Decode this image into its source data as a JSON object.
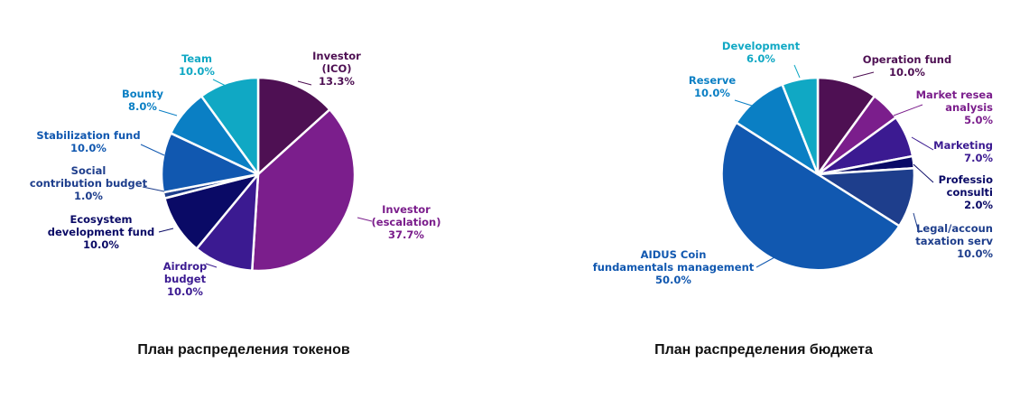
{
  "chart_data": [
    {
      "type": "pie",
      "title": "План распределения токенов",
      "slices": [
        {
          "label": [
            "Investor",
            "(ICO)"
          ],
          "value": 13.3,
          "display": "13.3%",
          "color": "#4e1053"
        },
        {
          "label": [
            "Investor",
            "(escalation)"
          ],
          "value": 37.7,
          "display": "37.7%",
          "color": "#7b1e8c"
        },
        {
          "label": [
            "Airdrop",
            "budget"
          ],
          "value": 10.0,
          "display": "10.0%",
          "color": "#3b1a91"
        },
        {
          "label": [
            "Ecosystem",
            "development fund"
          ],
          "value": 10.0,
          "display": "10.0%",
          "color": "#0a0a66"
        },
        {
          "label": [
            "Social",
            "contribution budget"
          ],
          "value": 1.0,
          "display": "1.0%",
          "color": "#1e3e8c"
        },
        {
          "label": [
            "Stabilization fund"
          ],
          "value": 10.0,
          "display": "10.0%",
          "color": "#1158b0"
        },
        {
          "label": [
            "Bounty"
          ],
          "value": 8.0,
          "display": "8.0%",
          "color": "#0a7fc4"
        },
        {
          "label": [
            "Team"
          ],
          "value": 10.0,
          "display": "10.0%",
          "color": "#10a8c4"
        }
      ]
    },
    {
      "type": "pie",
      "title": "План распределения бюджета",
      "slices": [
        {
          "label": [
            "Operation fund"
          ],
          "value": 10.0,
          "display": "10.0%",
          "color": "#4e1053"
        },
        {
          "label": [
            "Market resea",
            "analysis"
          ],
          "value": 5.0,
          "display": "5.0%",
          "color": "#7b1e8c"
        },
        {
          "label": [
            "Marketing"
          ],
          "value": 7.0,
          "display": "7.0%",
          "color": "#3b1a91"
        },
        {
          "label": [
            "Professio",
            "consulti"
          ],
          "value": 2.0,
          "display": "2.0%",
          "color": "#0a0a66"
        },
        {
          "label": [
            "Legal/accoun",
            "taxation serv"
          ],
          "value": 10.0,
          "display": "10.0%",
          "color": "#1e3e8c"
        },
        {
          "label": [
            "AIDUS Coin",
            "fundamentals management"
          ],
          "value": 50.0,
          "display": "50.0%",
          "color": "#1158b0"
        },
        {
          "label": [
            "Reserve"
          ],
          "value": 10.0,
          "display": "10.0%",
          "color": "#0a7fc4"
        },
        {
          "label": [
            "Development"
          ],
          "value": 6.0,
          "display": "6.0%",
          "color": "#10a8c4"
        }
      ]
    }
  ]
}
